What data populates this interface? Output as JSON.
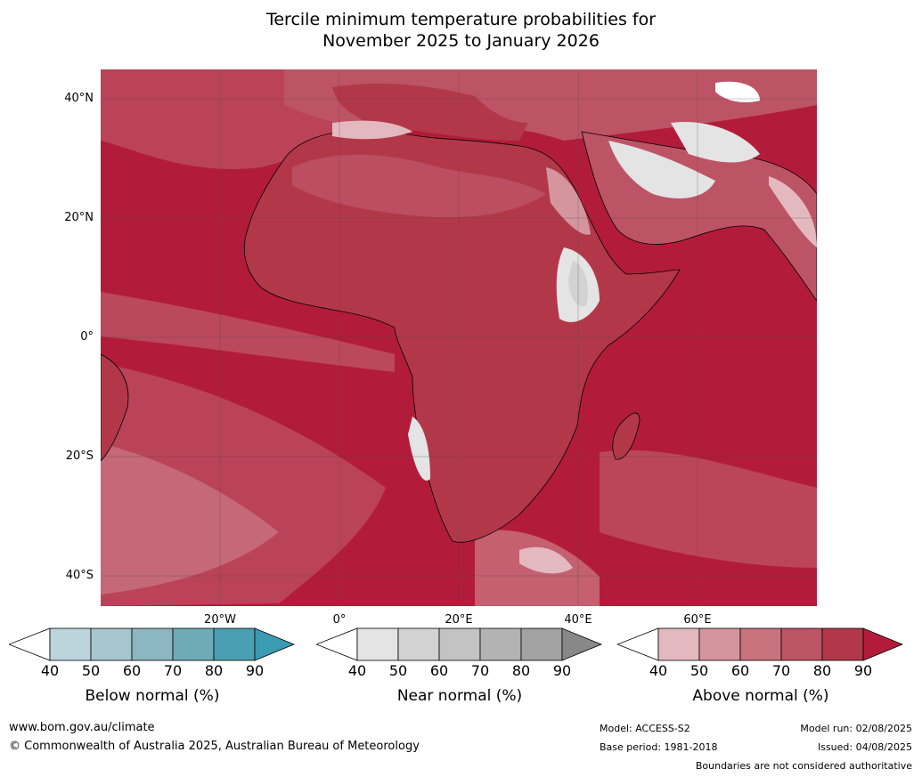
{
  "title_line1": "Tercile minimum temperature probabilities for",
  "title_line2": "November 2025 to January 2026",
  "lat_labels": [
    "40°N",
    "20°N",
    "0°",
    "20°S",
    "40°S"
  ],
  "lon_labels": [
    "20°W",
    "0°",
    "20°E",
    "40°E",
    "60°E"
  ],
  "colors": {
    "above": [
      "#e3b9bf",
      "#d4959e",
      "#c8727e",
      "#bd5466",
      "#b23849",
      "#b21c3a"
    ],
    "near": [
      "#e4e4e4",
      "#d2d2d2",
      "#c3c3c3",
      "#b3b3b3",
      "#a2a2a2",
      "#888888"
    ],
    "below": [
      "#bcd4dc",
      "#a6c6ce",
      "#8cb6c1",
      "#6eaab7",
      "#4aa0b2",
      "#3b9bb2"
    ]
  },
  "legends": [
    {
      "name": "Below normal (%)",
      "ticks": [
        "40",
        "50",
        "60",
        "70",
        "80",
        "90"
      ]
    },
    {
      "name": "Near normal (%)",
      "ticks": [
        "40",
        "50",
        "60",
        "70",
        "80",
        "90"
      ]
    },
    {
      "name": "Above normal (%)",
      "ticks": [
        "40",
        "50",
        "60",
        "70",
        "80",
        "90"
      ]
    }
  ],
  "footer": {
    "website": "www.bom.gov.au/climate",
    "copyright": "© Commonwealth of Australia 2025, Australian Bureau of Meteorology",
    "model": "Model: ACCESS-S2",
    "base_period": "Base period: 1981-2018",
    "model_run": "Model run: 02/08/2025",
    "issued": "Issued: 04/08/2025",
    "disclaimer": "Boundaries are not considered authoritative"
  }
}
